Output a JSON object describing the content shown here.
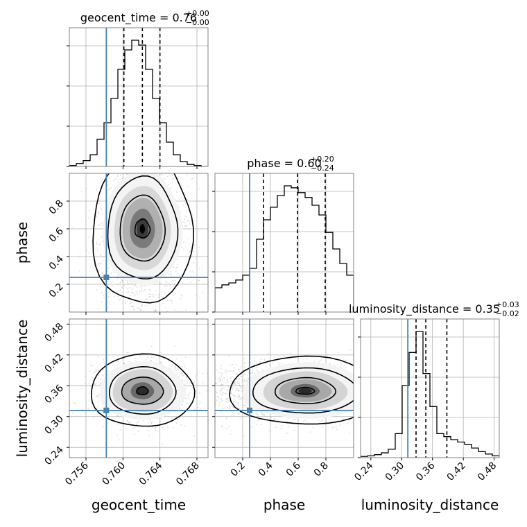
{
  "chart_data": {
    "type": "corner",
    "parameters": [
      "geocent_time",
      "phase",
      "luminosity_distance"
    ],
    "injection": {
      "geocent_time": 0.7582,
      "phase": 0.25,
      "luminosity_distance": 0.312
    },
    "injection_color": "#4682b4",
    "panel_titles": {
      "geocent_time": {
        "base": "geocent_time = 0.76",
        "sup": "+0.00",
        "sub": "−0.00"
      },
      "phase": {
        "base": "phase = 0.60",
        "sup": "+0.20",
        "sub": "−0.24"
      },
      "luminosity_distance": {
        "base": "luminosity_distance = 0.35",
        "sup": "+0.03",
        "sub": "−0.02"
      }
    },
    "axis_labels": {
      "x": [
        "geocent_time",
        "phase",
        "luminosity_distance"
      ],
      "y": [
        "phase",
        "luminosity_distance"
      ]
    },
    "ranges": {
      "geocent_time": [
        0.7542,
        0.7692
      ],
      "phase": [
        0.0,
        1.0
      ],
      "luminosity_distance": [
        0.22,
        0.49
      ]
    },
    "ticks": {
      "geocent_time": {
        "values": [
          0.756,
          0.76,
          0.764,
          0.768
        ],
        "labels": [
          "0.756",
          "0.760",
          "0.764",
          "0.768"
        ]
      },
      "phase": {
        "values": [
          0.2,
          0.4,
          0.6,
          0.8
        ],
        "labels": [
          "0.2",
          "0.4",
          "0.6",
          "0.8"
        ]
      },
      "luminosity_distance": {
        "values": [
          0.24,
          0.3,
          0.36,
          0.42,
          0.48
        ],
        "labels": [
          "0.24",
          "0.30",
          "0.36",
          "0.42",
          "0.48"
        ]
      }
    },
    "quantiles": {
      "geocent_time": [
        0.7601,
        0.7621,
        0.764
      ],
      "phase": [
        0.35,
        0.595,
        0.795
      ],
      "luminosity_distance": [
        0.328,
        0.347,
        0.388
      ]
    },
    "histograms": {
      "geocent_time": [
        0.1,
        0.3,
        0.6,
        1.2,
        2.8,
        4.5,
        7.0,
        10.0,
        12.0,
        13.0,
        12.5,
        10.0,
        7.0,
        4.5,
        2.5,
        1.2,
        0.5,
        0.2,
        0.1,
        0.0
      ],
      "phase": [
        2.5,
        2.8,
        3.0,
        3.3,
        3.8,
        4.5,
        7.5,
        9.5,
        10.8,
        12.0,
        13.0,
        12.8,
        12.3,
        11.8,
        11.0,
        10.0,
        8.2,
        6.5,
        5.0,
        3.8
      ],
      "luminosity_distance": [
        0.2,
        0.3,
        0.5,
        0.8,
        1.4,
        4.0,
        12.0,
        17.5,
        21.0,
        14.0,
        8.5,
        4.0,
        3.5,
        3.0,
        2.6,
        2.2,
        1.6,
        1.0,
        0.6,
        0.3
      ]
    },
    "grid": true,
    "density_colors": "greyscale",
    "contour_color": "#000000"
  }
}
